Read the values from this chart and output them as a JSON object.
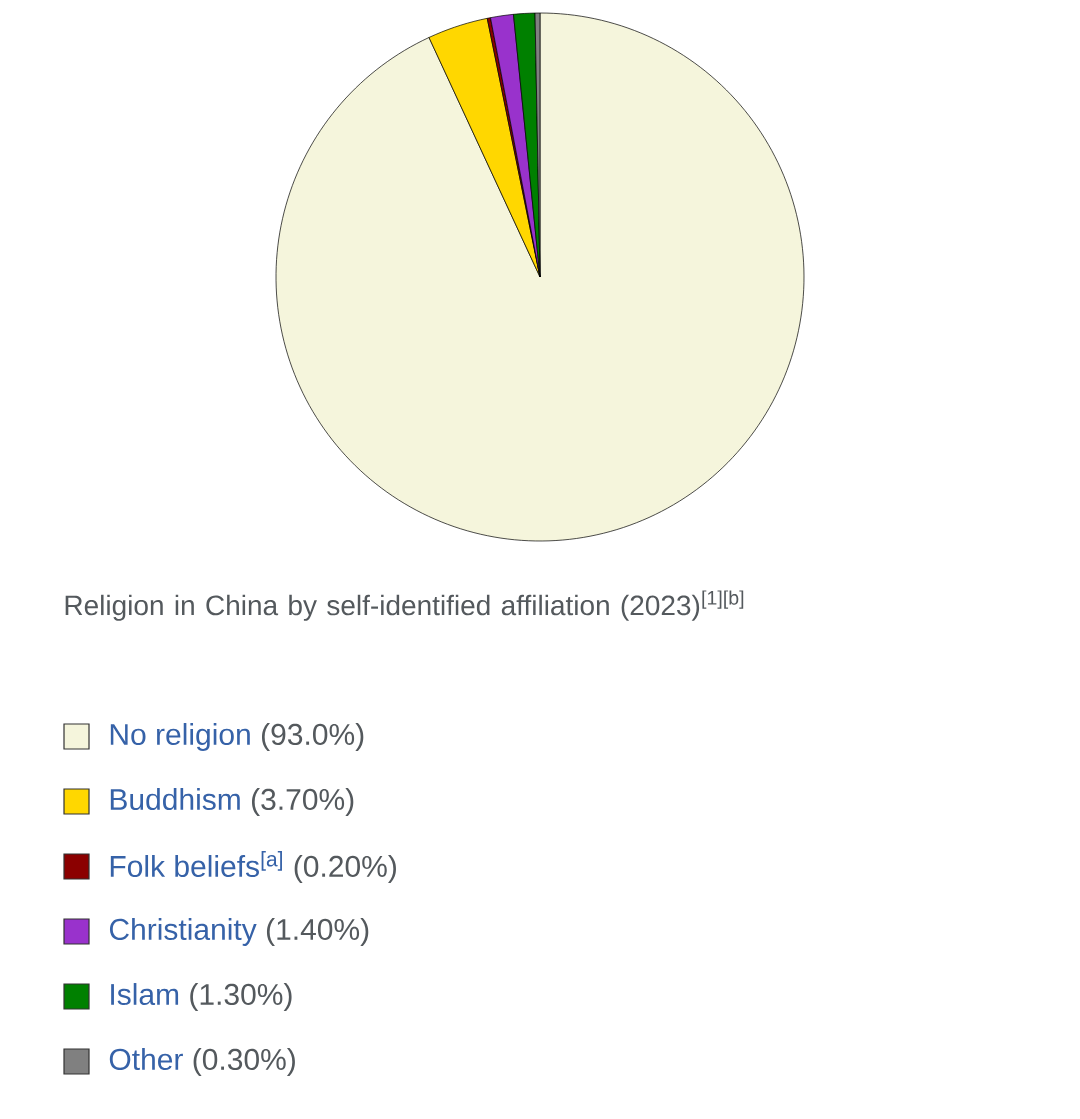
{
  "chart_data": {
    "type": "pie",
    "title": "Religion in China by self-identified affiliation (2023)$^{[1][b]}$",
    "categories": [
      "No religion",
      "Buddhism",
      "Folk beliefs$^{[a]}$",
      "Christianity",
      "Islam",
      "Other"
    ],
    "values": [
      93.0,
      3.7,
      0.2,
      1.4,
      1.3,
      0.3
    ],
    "value_labels": [
      "(93.0%)",
      "(3.70%)",
      "(0.20%)",
      "(1.40%)",
      "(1.30%)",
      "(0.30%)"
    ],
    "colors": [
      "#f5f5dc",
      "#ffd700",
      "#8b0000",
      "#9932cc",
      "#008000",
      "#808080"
    ],
    "legend": "bottom"
  }
}
